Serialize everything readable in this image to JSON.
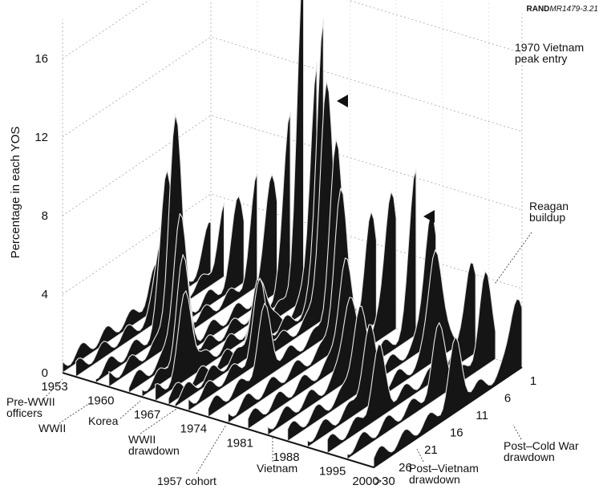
{
  "figure_id": {
    "prefix": "RAND",
    "code": "MR1479-3.21"
  },
  "chart_data": {
    "type": "area",
    "title": "",
    "ylabel": "Percentage in each YOS",
    "zlim": [
      0,
      18
    ],
    "z_ticks": [
      "0",
      "4",
      "8",
      "12",
      "16"
    ],
    "year_ticks": [
      "1953",
      "1960",
      "1967",
      "1974",
      "1981",
      "1988",
      "1995",
      "2000"
    ],
    "yos_ticks": [
      ">30",
      "26",
      "21",
      "16",
      "11",
      "6",
      "1"
    ],
    "year_range": [
      1953,
      2000
    ],
    "yos_range": [
      1,
      30
    ],
    "grid": true,
    "series": [
      {
        "year": 1953,
        "peaks": [
          {
            "yos": 1,
            "value": 2.0
          },
          {
            "yos": 12,
            "value": 1.5
          }
        ]
      },
      {
        "year": 1955,
        "peaks": [
          {
            "yos": 1,
            "value": 3.0
          },
          {
            "yos": 13,
            "value": 4.0
          }
        ]
      },
      {
        "year": 1958,
        "peaks": [
          {
            "yos": 2,
            "value": 4.0
          },
          {
            "yos": 16,
            "value": 8.0
          }
        ]
      },
      {
        "year": 1960,
        "peaks": [
          {
            "yos": 1,
            "value": 5.0
          },
          {
            "yos": 17,
            "value": 11.0
          }
        ]
      },
      {
        "year": 1963,
        "peaks": [
          {
            "yos": 2,
            "value": 6.0
          },
          {
            "yos": 20,
            "value": 7.0
          }
        ]
      },
      {
        "year": 1965,
        "peaks": [
          {
            "yos": 1,
            "value": 9.0
          },
          {
            "yos": 22,
            "value": 5.0
          }
        ]
      },
      {
        "year": 1967,
        "peaks": [
          {
            "yos": 1,
            "value": 16.5
          },
          {
            "yos": 24,
            "value": 4.0
          }
        ]
      },
      {
        "year": 1969,
        "peaks": [
          {
            "yos": 1,
            "value": 12.0
          },
          {
            "yos": 12,
            "value": 3.0
          }
        ]
      },
      {
        "year": 1970,
        "peaks": [
          {
            "yos": 1,
            "value": 14.5
          },
          {
            "yos": 14,
            "value": 3.0
          }
        ]
      },
      {
        "year": 1972,
        "peaks": [
          {
            "yos": 3,
            "value": 11.5
          },
          {
            "yos": 16,
            "value": 3.5
          }
        ]
      },
      {
        "year": 1975,
        "peaks": [
          {
            "yos": 5,
            "value": 9.0
          },
          {
            "yos": 19,
            "value": 3.0
          }
        ]
      },
      {
        "year": 1978,
        "peaks": [
          {
            "yos": 8,
            "value": 7.5
          },
          {
            "yos": 2,
            "value": 5.0
          }
        ]
      },
      {
        "year": 1981,
        "peaks": [
          {
            "yos": 2,
            "value": 7.0
          },
          {
            "yos": 11,
            "value": 5.0
          }
        ]
      },
      {
        "year": 1984,
        "peaks": [
          {
            "yos": 1,
            "value": 8.0
          },
          {
            "yos": 14,
            "value": 4.0
          }
        ]
      },
      {
        "year": 1987,
        "peaks": [
          {
            "yos": 2,
            "value": 6.5
          },
          {
            "yos": 16,
            "value": 4.0
          }
        ]
      },
      {
        "year": 1990,
        "peaks": [
          {
            "yos": 5,
            "value": 5.5
          },
          {
            "yos": 18,
            "value": 3.5
          }
        ]
      },
      {
        "year": 1993,
        "peaks": [
          {
            "yos": 2,
            "value": 4.5
          },
          {
            "yos": 20,
            "value": 3.0
          }
        ]
      },
      {
        "year": 1996,
        "peaks": [
          {
            "yos": 3,
            "value": 4.0
          },
          {
            "yos": 12,
            "value": 3.0
          }
        ]
      },
      {
        "year": 2000,
        "peaks": [
          {
            "yos": 2,
            "value": 3.5
          },
          {
            "yos": 14,
            "value": 3.0
          }
        ]
      }
    ],
    "annotations": [
      {
        "id": "vietnam-peak",
        "text": [
          "1970 Vietnam",
          "peak entry"
        ]
      },
      {
        "id": "reagan",
        "text": [
          "Reagan",
          "buildup"
        ]
      },
      {
        "id": "pre-wwii",
        "text": [
          "Pre-WWII",
          "officers"
        ]
      },
      {
        "id": "wwii",
        "text": [
          "WWII"
        ]
      },
      {
        "id": "korea",
        "text": [
          "Korea"
        ]
      },
      {
        "id": "wwii-drawdown",
        "text": [
          "WWII",
          "drawdown"
        ]
      },
      {
        "id": "cohort-1957",
        "text": [
          "1957 cohort"
        ]
      },
      {
        "id": "vietnam",
        "text": [
          "Vietnam"
        ]
      },
      {
        "id": "post-vietnam",
        "text": [
          "Post–Vietnam",
          "drawdown"
        ]
      },
      {
        "id": "post-cold-war",
        "text": [
          "Post–Cold War",
          "drawdown"
        ]
      }
    ],
    "colors": {
      "surface": "#151515",
      "ridge_highlight": "#e8e8e8",
      "grid": "#9a9a9a",
      "text": "#111111"
    }
  }
}
